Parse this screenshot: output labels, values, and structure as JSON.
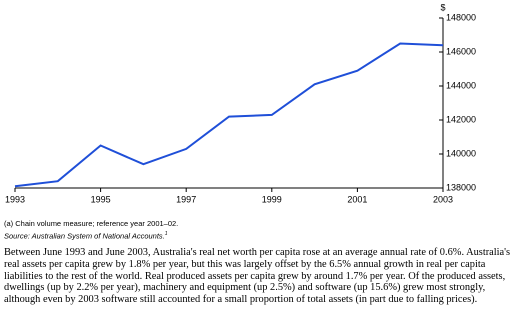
{
  "chart_data": {
    "type": "line",
    "y_label": "$",
    "x": [
      1993,
      1994,
      1995,
      1996,
      1997,
      1998,
      1999,
      2000,
      2001,
      2002,
      2003
    ],
    "series": [
      {
        "name": "Real net worth per capita",
        "color": "#1f4fd8",
        "values": [
          138100,
          138400,
          140500,
          139400,
          140300,
          142200,
          142300,
          144100,
          144900,
          146500,
          146400
        ]
      }
    ],
    "xlim": [
      1993,
      2003
    ],
    "xticks": [
      1993,
      1995,
      1997,
      1999,
      2001,
      2003
    ],
    "ylim": [
      138000,
      148000
    ],
    "yticks": [
      138000,
      140000,
      142000,
      144000,
      146000,
      148000
    ],
    "grid": false
  },
  "note": "(a) Chain volume measure; reference year 2001–02.",
  "source": "Source: Australian System of National Accounts.",
  "source_ref": "1",
  "paragraph": "Between June 1993 and June 2003, Australia's real net worth per capita rose at an average annual rate of 0.6%. Australia's real assets per capita grew by 1.8% per year, but this was largely offset by the 6.5% annual growth in real per capita liabilities to the rest of the world. Real produced assets per capita grew by around 1.7% per year. Of the produced assets, dwellings (up by 2.2% per year), machinery and equipment (up 2.5%) and software (up 15.6%) grew most strongly, although even by 2003 software still accounted for a small proportion of total assets (in part due to falling prices)."
}
